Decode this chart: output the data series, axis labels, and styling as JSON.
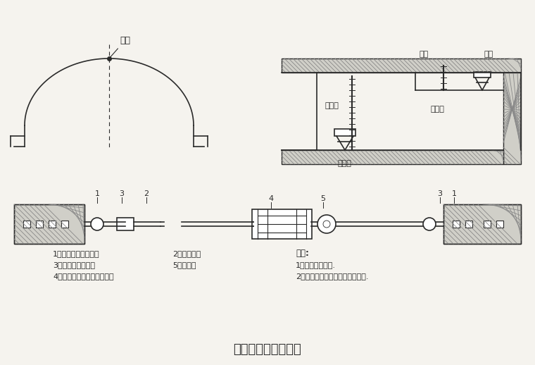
{
  "title": "主要量测方法示意图",
  "title_fontsize": 13,
  "bg_color": "#f5f3ee",
  "line_color": "#2a2a2a",
  "labels": {
    "tunnel_cross_section_label": "测点",
    "level_gauge_label": "水准尺",
    "staff_gauge_label": "倒装尺",
    "level_instrument_label": "水平仪",
    "turning_point_label": "转点",
    "measurement_point_label": "测点",
    "legend1": "1、净空变位仪矩锚杆",
    "legend2": "2、带孔钢尺",
    "legend3": "3、有珠铰的连接杆",
    "legend4": "5、百分表",
    "legend5": "4、维持张拉倒尺拉力的装置",
    "note_title": "说明:",
    "note1": "1、洞内观察未述.",
    "note2": "2、其它量测项目按有关说明实施."
  }
}
